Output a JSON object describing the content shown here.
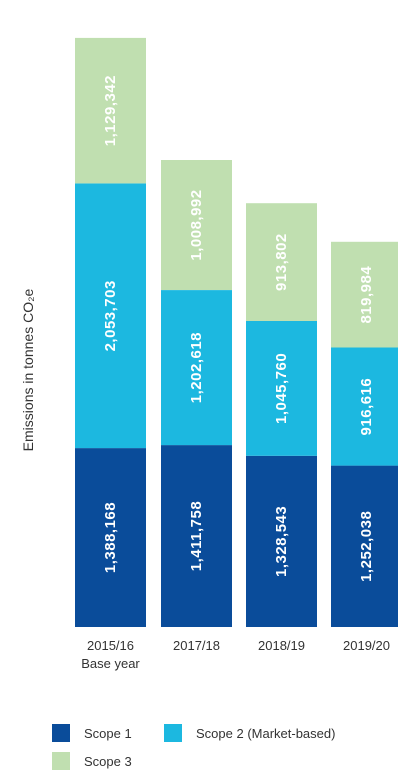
{
  "chart_data": {
    "type": "bar",
    "stacked": true,
    "orientation": "vertical",
    "ylabel": "Emissions in tonnes CO₂e",
    "categories": [
      {
        "line1": "2015/16",
        "line2": "Base year"
      },
      {
        "line1": "2017/18",
        "line2": ""
      },
      {
        "line1": "2018/19",
        "line2": ""
      },
      {
        "line1": "2019/20",
        "line2": ""
      }
    ],
    "series": [
      {
        "name": "Scope 1",
        "color": "#0a4c9a",
        "values": [
          1388168,
          1411758,
          1328543,
          1252038
        ],
        "labels": [
          "1,388,168",
          "1,411,758",
          "1,328,543",
          "1,252,038"
        ]
      },
      {
        "name": "Scope 2 (Market-based)",
        "color": "#1cb8e0",
        "values": [
          2053703,
          1202618,
          1045760,
          916616
        ],
        "labels": [
          "2,053,703",
          "1,202,618",
          "1,045,760",
          "916,616"
        ]
      },
      {
        "name": "Scope 3",
        "color": "#c0dfb0",
        "values": [
          1129342,
          1008992,
          913802,
          819984
        ],
        "labels": [
          "1,129,342",
          "1,008,992",
          "913,802",
          "819,984"
        ]
      }
    ],
    "grid": false,
    "legend_position": "bottom"
  },
  "legend": [
    {
      "label": "Scope 1",
      "color": "#0a4c9a"
    },
    {
      "label": "Scope 2  (Market-based)",
      "color": "#1cb8e0"
    },
    {
      "label": "Scope 3",
      "color": "#c0dfb0"
    }
  ]
}
